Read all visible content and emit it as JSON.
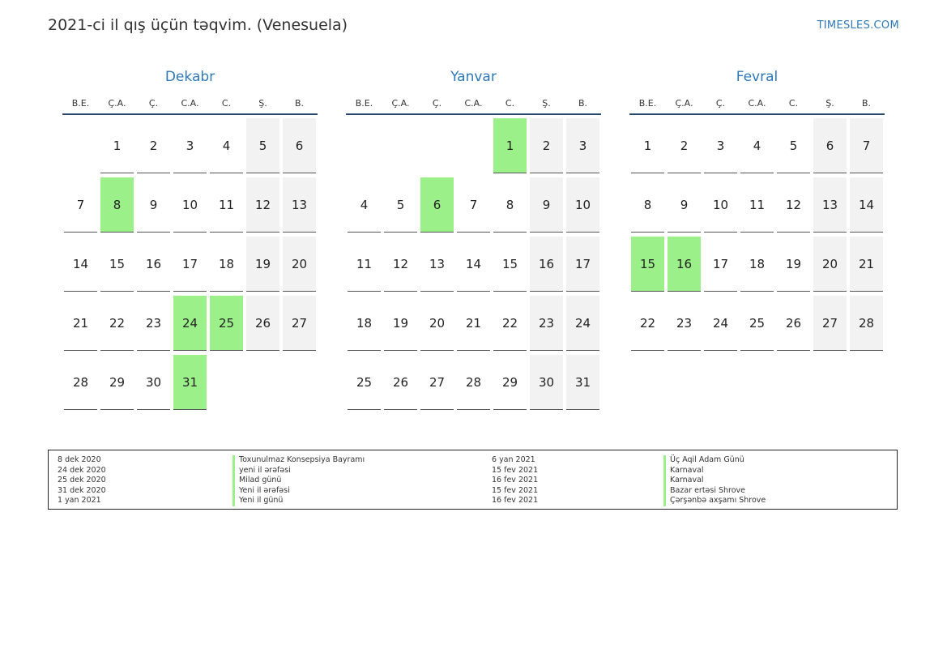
{
  "header": {
    "title": "2021-ci il qış üçün təqvim. (Venesuela)",
    "brand": "TIMESLES.COM"
  },
  "weekdays": [
    "B.E.",
    "Ç.A.",
    "Ç.",
    "C.A.",
    "C.",
    "Ş.",
    "B."
  ],
  "months": [
    {
      "name": "Dekabr",
      "weeks": [
        [
          "",
          "1",
          "2",
          "3",
          "4",
          "5",
          "6"
        ],
        [
          "7",
          "8",
          "9",
          "10",
          "11",
          "12",
          "13"
        ],
        [
          "14",
          "15",
          "16",
          "17",
          "18",
          "19",
          "20"
        ],
        [
          "21",
          "22",
          "23",
          "24",
          "25",
          "26",
          "27"
        ],
        [
          "28",
          "29",
          "30",
          "31",
          "",
          "",
          ""
        ]
      ],
      "holidays": [
        "8",
        "24",
        "25",
        "31"
      ]
    },
    {
      "name": "Yanvar",
      "weeks": [
        [
          "",
          "",
          "",
          "",
          "1",
          "2",
          "3"
        ],
        [
          "4",
          "5",
          "6",
          "7",
          "8",
          "9",
          "10"
        ],
        [
          "11",
          "12",
          "13",
          "14",
          "15",
          "16",
          "17"
        ],
        [
          "18",
          "19",
          "20",
          "21",
          "22",
          "23",
          "24"
        ],
        [
          "25",
          "26",
          "27",
          "28",
          "29",
          "30",
          "31"
        ]
      ],
      "holidays": [
        "1",
        "6"
      ]
    },
    {
      "name": "Fevral",
      "weeks": [
        [
          "1",
          "2",
          "3",
          "4",
          "5",
          "6",
          "7"
        ],
        [
          "8",
          "9",
          "10",
          "11",
          "12",
          "13",
          "14"
        ],
        [
          "15",
          "16",
          "17",
          "18",
          "19",
          "20",
          "21"
        ],
        [
          "22",
          "23",
          "24",
          "25",
          "26",
          "27",
          "28"
        ]
      ],
      "holidays": [
        "15",
        "16"
      ]
    }
  ],
  "legend": {
    "left": [
      {
        "date": "8 dek 2020",
        "name": "Toxunulmaz Konsepsiya Bayramı"
      },
      {
        "date": "24 dek 2020",
        "name": "yeni il ərəfəsi"
      },
      {
        "date": "25 dek 2020",
        "name": "Milad günü"
      },
      {
        "date": "31 dek 2020",
        "name": "Yeni il ərəfəsi"
      },
      {
        "date": "1 yan 2021",
        "name": "Yeni il günü"
      }
    ],
    "right": [
      {
        "date": "6 yan 2021",
        "name": "Üç Aqil Adam Günü"
      },
      {
        "date": "15 fev 2021",
        "name": "Karnaval"
      },
      {
        "date": "16 fev 2021",
        "name": "Karnaval"
      },
      {
        "date": "15 fev 2021",
        "name": "Bazar ertəsi Shrove"
      },
      {
        "date": "16 fev 2021",
        "name": "Çərşənbə axşamı Shrove"
      }
    ]
  },
  "colors": {
    "holiday": "#9cf08a",
    "weekend": "#f2f2f2",
    "accent": "#2e78b8",
    "header_rule": "#2b4a6b"
  }
}
